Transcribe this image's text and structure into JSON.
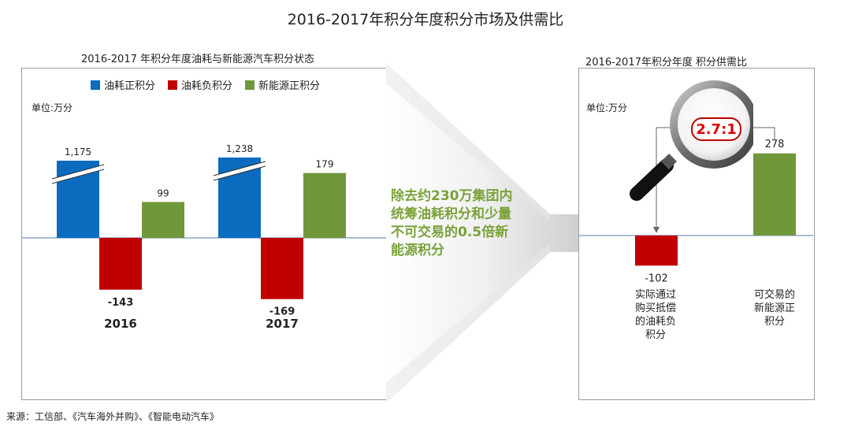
{
  "title": "2016-2017年积分年度积分市场及供需比",
  "left_panel": {
    "title": "2016-2017 年积分年度油耗与新能源汽车积分状态",
    "unit": "单位:万分",
    "legend": [
      {
        "label": "油耗正积分",
        "color": "#0a6bbf"
      },
      {
        "label": "油耗负积分",
        "color": "#c00000"
      },
      {
        "label": "新能源正积分",
        "color": "#70973a"
      }
    ]
  },
  "right_panel": {
    "title": "2016-2017年积分年度 积分供需比",
    "unit": "单位:万分",
    "ratio": "2.7:1",
    "captions": [
      "实际通过\n购买抵偿\n的油耗负\n积分",
      "可交易的\n新能源正\n积分"
    ]
  },
  "middle_note": "除去约230万集团内统筹油耗积分和少量不可交易的0.5倍新能源积分",
  "source": "来源：工信部、《汽车海外并购》、《智能电动汽车》",
  "chart_data": [
    {
      "type": "bar",
      "title": "2016-2017 年积分年度油耗与新能源汽车积分状态",
      "categories": [
        "2016",
        "2017"
      ],
      "series": [
        {
          "name": "油耗正积分",
          "values": [
            1175,
            1238
          ],
          "labels": [
            "1,175",
            "1,238"
          ],
          "axis_break": true,
          "color": "#0a6bbf"
        },
        {
          "name": "油耗负积分",
          "values": [
            -143,
            -169
          ],
          "labels": [
            "-143",
            "-169"
          ],
          "color": "#c00000"
        },
        {
          "name": "新能源正积分",
          "values": [
            99,
            179
          ],
          "labels": [
            "99",
            "179"
          ],
          "color": "#70973a"
        }
      ],
      "ylabel": "单位:万分",
      "grid": false,
      "legend": "top"
    },
    {
      "type": "bar",
      "title": "2016-2017年积分年度 积分供需比",
      "categories": [
        "实际通过购买抵偿的油耗负积分",
        "可交易的新能源正积分"
      ],
      "values": [
        -102,
        278
      ],
      "labels": [
        "-102",
        "278"
      ],
      "colors": [
        "#c00000",
        "#70973a"
      ],
      "ylabel": "单位:万分",
      "annotation": "2.7:1",
      "grid": false
    }
  ]
}
